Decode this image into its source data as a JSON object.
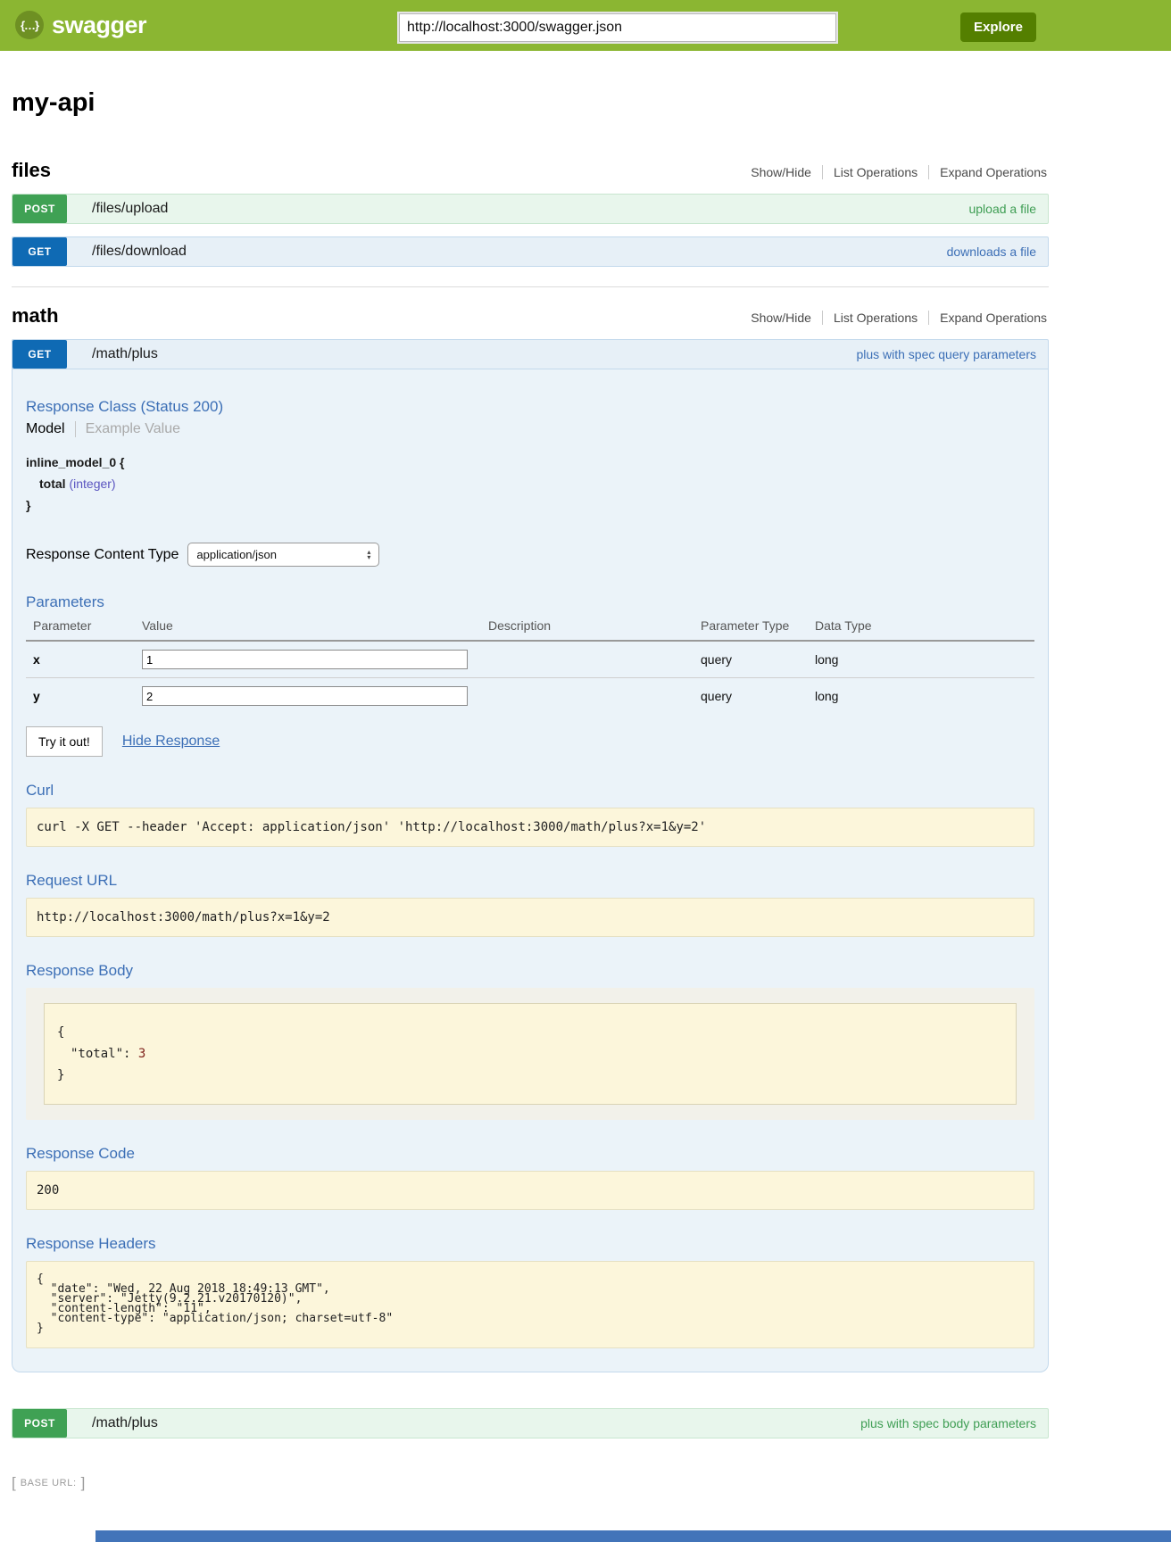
{
  "header": {
    "brand": "swagger",
    "logo_glyph": "{…}",
    "url_input": "http://localhost:3000/swagger.json",
    "explore_button": "Explore"
  },
  "page": {
    "title": "my-api"
  },
  "menu": {
    "show_hide": "Show/Hide",
    "list_operations": "List Operations",
    "expand_operations": "Expand Operations"
  },
  "files": {
    "title": "files",
    "endpoints": [
      {
        "method": "POST",
        "path": "/files/upload",
        "summary": "upload a file"
      },
      {
        "method": "GET",
        "path": "/files/download",
        "summary": "downloads a file"
      }
    ]
  },
  "math": {
    "title": "math",
    "get_plus": {
      "method": "GET",
      "path": "/math/plus",
      "summary": "plus with spec query parameters",
      "response_class_title": "Response Class (Status 200)",
      "tabs": {
        "model": "Model",
        "example": "Example Value"
      },
      "model": {
        "name": "inline_model_0 {",
        "prop_name": "total",
        "prop_type": "(integer)",
        "close": "}"
      },
      "content_type": {
        "label": "Response Content Type",
        "value": "application/json"
      },
      "parameters": {
        "title": "Parameters",
        "columns": [
          "Parameter",
          "Value",
          "Description",
          "Parameter Type",
          "Data Type"
        ],
        "rows": [
          {
            "name": "x",
            "value": "1",
            "description": "",
            "param_type": "query",
            "data_type": "long"
          },
          {
            "name": "y",
            "value": "2",
            "description": "",
            "param_type": "query",
            "data_type": "long"
          }
        ]
      },
      "try_button": "Try it out!",
      "hide_response": "Hide Response",
      "curl_title": "Curl",
      "curl_command": "curl -X GET --header 'Accept: application/json' 'http://localhost:3000/math/plus?x=1&y=2'",
      "request_url_title": "Request URL",
      "request_url": "http://localhost:3000/math/plus?x=1&y=2",
      "response_body": {
        "title": "Response Body",
        "open": "{",
        "key": "\"total\":",
        "value": "3",
        "close": "}"
      },
      "response_code": {
        "title": "Response Code",
        "value": "200"
      },
      "response_headers": {
        "title": "Response Headers",
        "text": "{\n  \"date\": \"Wed, 22 Aug 2018 18:49:13 GMT\",\n  \"server\": \"Jetty(9.2.21.v20170120)\",\n  \"content-length\": \"11\",\n  \"content-type\": \"application/json; charset=utf-8\"\n}"
      }
    },
    "post_plus": {
      "method": "POST",
      "path": "/math/plus",
      "summary": "plus with spec body parameters"
    }
  },
  "footer": {
    "bracket_open": "[",
    "base_url_label": "BASE URL:",
    "bracket_close": "]"
  },
  "colors": {
    "header_green": "#8bb632",
    "explore_button_green": "#547f00",
    "get_blue": "#0f6ab4",
    "post_green": "#3fa154",
    "heading_blue": "#3c6fb6",
    "code_block_bg": "#fcf6db",
    "json_number_red": "#7f231c",
    "prop_type_purple": "#5a54c0"
  }
}
